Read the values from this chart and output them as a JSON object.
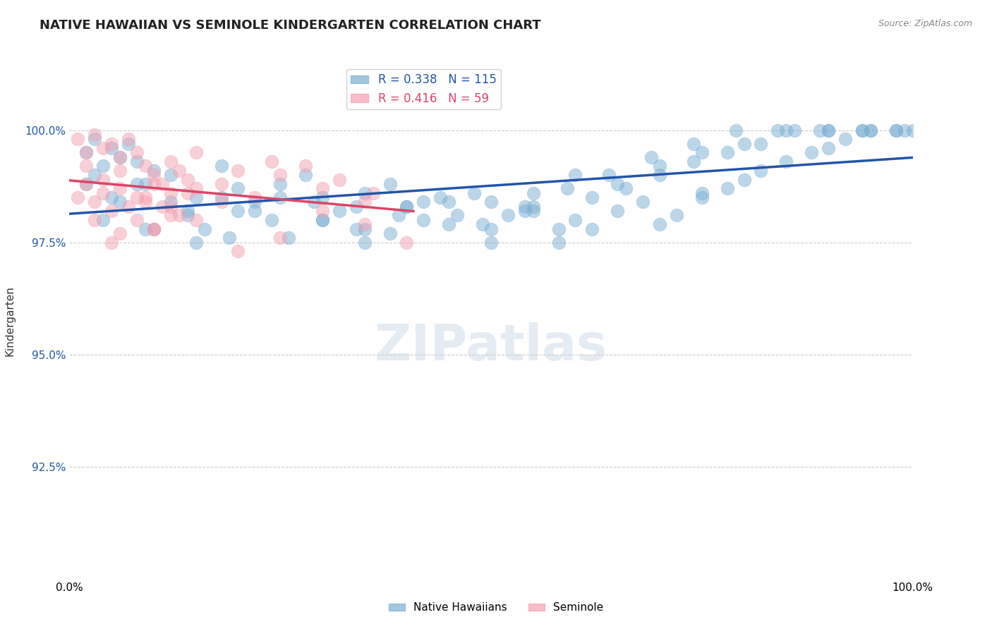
{
  "title": "NATIVE HAWAIIAN VS SEMINOLE KINDERGARTEN CORRELATION CHART",
  "source_text": "Source: ZipAtlas.com",
  "xlabel": "",
  "ylabel": "Kindergarten",
  "xlim": [
    0.0,
    100.0
  ],
  "ylim": [
    90.0,
    101.5
  ],
  "yticks": [
    92.5,
    95.0,
    97.5,
    100.0
  ],
  "ytick_labels": [
    "92.5%",
    "95.0%",
    "97.5%",
    "100.0%"
  ],
  "xticks": [
    0.0,
    100.0
  ],
  "xtick_labels": [
    "0.0%",
    "100.0%"
  ],
  "blue_R": 0.338,
  "blue_N": 115,
  "pink_R": 0.416,
  "pink_N": 59,
  "blue_color": "#7bafd4",
  "pink_color": "#f4a0b0",
  "blue_line_color": "#2255aa",
  "pink_line_color": "#dd4466",
  "legend_label_blue": "Native Hawaiians",
  "legend_label_pink": "Seminole",
  "title_fontsize": 13,
  "axis_label_fontsize": 11,
  "tick_fontsize": 11,
  "background_color": "#ffffff",
  "grid_color": "#cccccc",
  "watermark_text": "ZIPatlas",
  "blue_scatter_x": [
    2,
    3,
    4,
    5,
    6,
    7,
    8,
    9,
    10,
    12,
    15,
    18,
    20,
    22,
    25,
    28,
    30,
    32,
    35,
    38,
    40,
    42,
    45,
    48,
    50,
    52,
    55,
    58,
    60,
    62,
    65,
    68,
    70,
    72,
    75,
    78,
    80,
    82,
    85,
    88,
    90,
    92,
    95,
    98,
    100,
    3,
    5,
    8,
    12,
    16,
    20,
    25,
    30,
    35,
    40,
    45,
    50,
    55,
    60,
    65,
    70,
    75,
    80,
    85,
    90,
    2,
    6,
    10,
    14,
    18,
    22,
    26,
    30,
    34,
    38,
    42,
    46,
    50,
    54,
    58,
    62,
    66,
    70,
    74,
    78,
    82,
    86,
    90,
    94,
    98,
    4,
    9,
    14,
    19,
    24,
    29,
    34,
    39,
    44,
    49,
    54,
    59,
    64,
    69,
    74,
    79,
    84,
    89,
    94,
    99,
    15,
    35,
    55,
    75,
    95
  ],
  "blue_scatter_y": [
    99.5,
    99.8,
    99.2,
    99.6,
    99.4,
    99.7,
    99.3,
    98.8,
    99.1,
    99.0,
    98.5,
    99.2,
    98.7,
    98.4,
    98.8,
    99.0,
    98.5,
    98.2,
    98.6,
    98.8,
    98.3,
    98.0,
    98.4,
    98.6,
    97.8,
    98.1,
    98.3,
    97.5,
    98.0,
    97.8,
    98.2,
    98.4,
    97.9,
    98.1,
    98.5,
    98.7,
    98.9,
    99.1,
    99.3,
    99.5,
    99.6,
    99.8,
    100.0,
    100.0,
    100.0,
    99.0,
    98.5,
    98.8,
    98.4,
    97.8,
    98.2,
    98.5,
    98.0,
    97.5,
    98.3,
    97.9,
    98.4,
    98.6,
    99.0,
    98.8,
    99.2,
    99.5,
    99.7,
    100.0,
    100.0,
    98.8,
    98.4,
    97.8,
    98.1,
    98.5,
    98.2,
    97.6,
    98.0,
    98.3,
    97.7,
    98.4,
    98.1,
    97.5,
    98.2,
    97.8,
    98.5,
    98.7,
    99.0,
    99.3,
    99.5,
    99.7,
    100.0,
    100.0,
    100.0,
    100.0,
    98.0,
    97.8,
    98.2,
    97.6,
    98.0,
    98.4,
    97.8,
    98.1,
    98.5,
    97.9,
    98.3,
    98.7,
    99.0,
    99.4,
    99.7,
    100.0,
    100.0,
    100.0,
    100.0,
    100.0,
    97.5,
    97.8,
    98.2,
    98.6,
    100.0
  ],
  "pink_scatter_x": [
    1,
    2,
    3,
    4,
    5,
    6,
    7,
    8,
    9,
    10,
    11,
    12,
    13,
    14,
    15,
    1,
    2,
    3,
    4,
    5,
    6,
    7,
    8,
    9,
    10,
    11,
    12,
    13,
    2,
    4,
    6,
    8,
    10,
    12,
    14,
    3,
    6,
    9,
    12,
    15,
    18,
    5,
    10,
    15,
    20,
    25,
    30,
    35,
    40,
    25,
    30,
    35,
    28,
    32,
    36,
    18,
    20,
    22,
    24
  ],
  "pink_scatter_y": [
    99.8,
    99.5,
    99.9,
    99.6,
    99.7,
    99.4,
    99.8,
    99.5,
    99.2,
    99.0,
    98.8,
    99.3,
    99.1,
    98.9,
    99.5,
    98.5,
    98.8,
    98.4,
    98.6,
    98.2,
    98.7,
    98.3,
    98.0,
    98.5,
    97.8,
    98.3,
    98.6,
    98.1,
    99.2,
    98.9,
    99.1,
    98.5,
    98.8,
    98.3,
    98.6,
    98.0,
    97.7,
    98.4,
    98.1,
    98.7,
    98.4,
    97.5,
    97.8,
    98.0,
    97.3,
    97.6,
    98.2,
    97.9,
    97.5,
    99.0,
    98.7,
    98.4,
    99.2,
    98.9,
    98.6,
    98.8,
    99.1,
    98.5,
    99.3
  ]
}
